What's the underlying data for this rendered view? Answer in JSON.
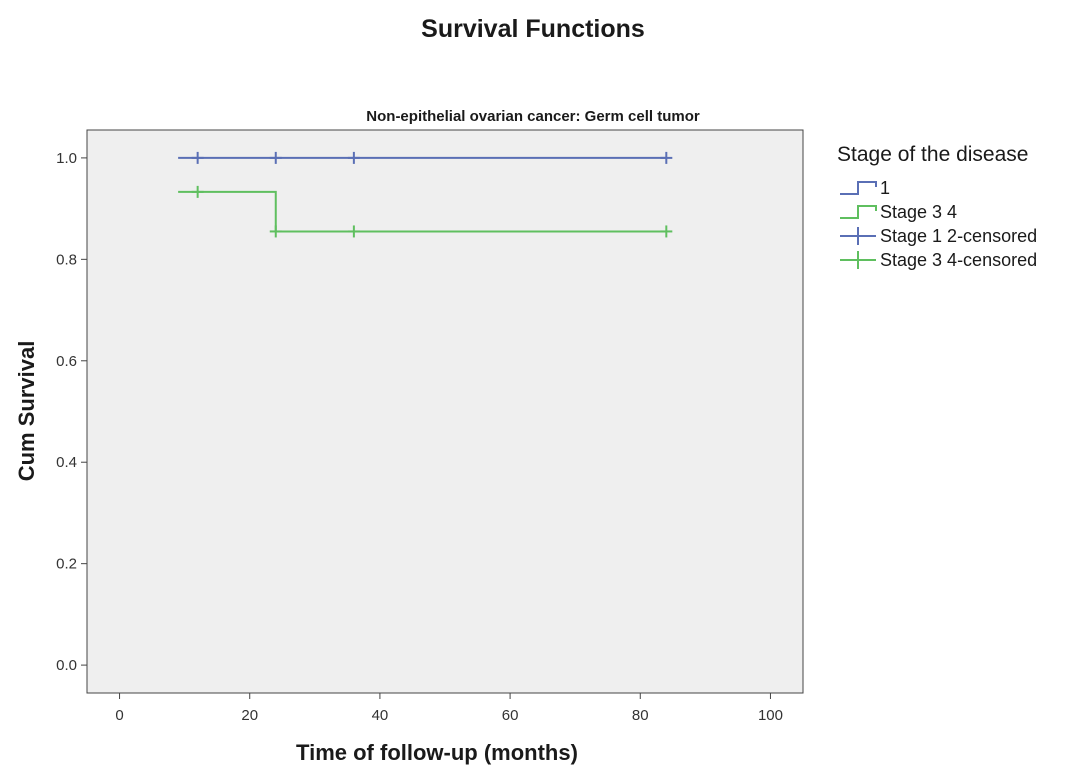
{
  "chart_data": {
    "type": "line",
    "step": true,
    "title": "Survival Functions",
    "subtitle": "Non-epithelial ovarian cancer: Germ cell tumor",
    "xlabel": "Time of follow-up (months)",
    "ylabel": "Cum Survival",
    "xlim": [
      -5,
      105
    ],
    "ylim": [
      -0.055,
      1.055
    ],
    "xticks": [
      0,
      20,
      40,
      60,
      80,
      100
    ],
    "xtick_labels": [
      "0",
      "20",
      "40",
      "60",
      "80",
      "100"
    ],
    "yticks": [
      0.0,
      0.2,
      0.4,
      0.6,
      0.8,
      1.0
    ],
    "ytick_labels": [
      "0.0",
      "0.2",
      "0.4",
      "0.6",
      "0.8",
      "1.0"
    ],
    "grid": false,
    "plot_background": "#efefef",
    "legend": {
      "title": "Stage of the disease",
      "position": "right",
      "entries": [
        {
          "label": "1",
          "kind": "step",
          "color": "#5a6fb5"
        },
        {
          "label": "Stage 3 4",
          "kind": "step",
          "color": "#5fbf5f"
        },
        {
          "label": "Stage 1  2-censored",
          "kind": "cross",
          "color": "#5a6fb5"
        },
        {
          "label": "Stage 3  4-censored",
          "kind": "cross",
          "color": "#5fbf5f"
        }
      ]
    },
    "series": [
      {
        "name": "1",
        "color": "#5a6fb5",
        "x": [
          9,
          84
        ],
        "y": [
          1.0,
          1.0
        ],
        "censored": [
          {
            "x": 12,
            "y": 1.0
          },
          {
            "x": 24,
            "y": 1.0
          },
          {
            "x": 36,
            "y": 1.0
          },
          {
            "x": 84,
            "y": 1.0
          }
        ]
      },
      {
        "name": "Stage 3 4",
        "color": "#5fbf5f",
        "x": [
          9,
          24,
          84
        ],
        "y": [
          0.933,
          0.855,
          0.855
        ],
        "censored": [
          {
            "x": 12,
            "y": 0.933
          },
          {
            "x": 24,
            "y": 0.855
          },
          {
            "x": 36,
            "y": 0.855
          },
          {
            "x": 84,
            "y": 0.855
          }
        ]
      }
    ]
  }
}
